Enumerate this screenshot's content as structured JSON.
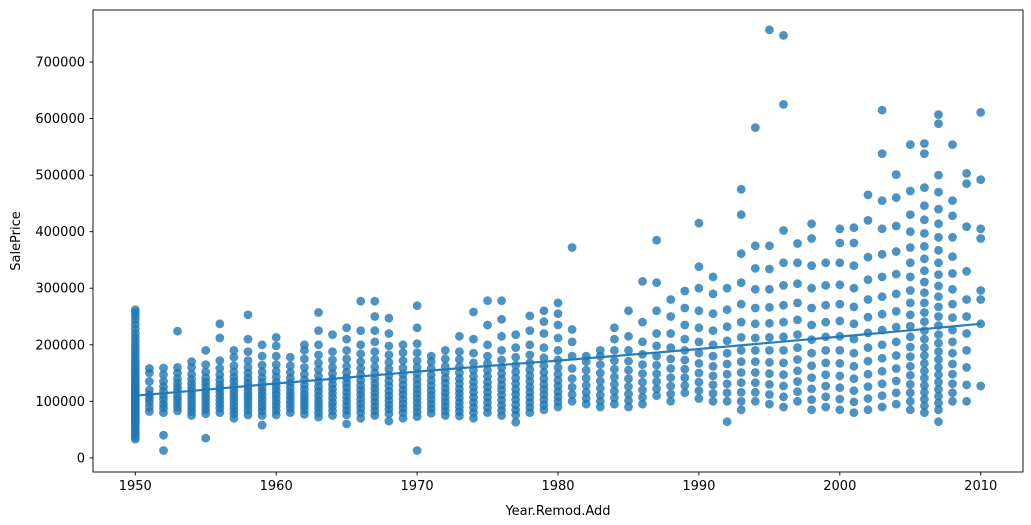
{
  "chart_data": {
    "type": "scatter",
    "title": "",
    "xlabel": "Year.Remod.Add",
    "ylabel": "SalePrice",
    "xlim": [
      1947,
      2013
    ],
    "ylim": [
      -25000,
      792000
    ],
    "xticks": [
      1950,
      1960,
      1970,
      1980,
      1990,
      2000,
      2010
    ],
    "yticks": [
      0,
      100000,
      200000,
      300000,
      400000,
      500000,
      600000,
      700000
    ],
    "grid": false,
    "legend": null,
    "point_color": "#1f77b4",
    "point_alpha": 0.8,
    "point_radius": 4.4,
    "trend_color": "#1f77b4",
    "trend_alpha": 0.95,
    "trend_width": 2.2,
    "price_unit": 1000,
    "columns_format": [
      "year",
      "prices_k"
    ],
    "columns": [
      [
        1950,
        [
          33,
          37,
          41,
          45,
          49,
          53,
          57,
          60,
          63,
          66,
          69,
          72,
          75,
          78,
          81,
          84,
          87,
          90,
          93,
          96,
          99,
          102,
          105,
          108,
          111,
          114,
          117,
          120,
          123,
          126,
          129,
          132,
          136,
          140,
          144,
          148,
          152,
          156,
          160,
          165,
          170,
          175,
          181,
          187,
          193,
          199,
          206,
          213,
          220,
          228,
          236,
          244,
          251,
          257,
          262
        ]
      ],
      [
        1951,
        [
          82,
          90,
          98,
          105,
          112,
          120,
          135,
          150,
          158
        ]
      ],
      [
        1952,
        [
          13,
          40,
          80,
          88,
          95,
          103,
          110,
          118,
          126,
          135,
          147,
          159
        ]
      ],
      [
        1953,
        [
          83,
          90,
          97,
          104,
          110,
          118,
          125,
          132,
          140,
          150,
          160,
          224
        ]
      ],
      [
        1954,
        [
          75,
          82,
          89,
          96,
          103,
          110,
          117,
          124,
          131,
          139,
          148,
          160,
          170
        ]
      ],
      [
        1955,
        [
          35,
          78,
          85,
          92,
          99,
          106,
          113,
          120,
          127,
          134,
          142,
          152,
          165,
          190
        ]
      ],
      [
        1956,
        [
          80,
          88,
          95,
          102,
          109,
          116,
          123,
          130,
          138,
          147,
          158,
          172,
          212,
          237
        ]
      ],
      [
        1957,
        [
          70,
          78,
          85,
          92,
          99,
          106,
          113,
          120,
          127,
          135,
          143,
          152,
          163,
          178,
          190
        ]
      ],
      [
        1958,
        [
          76,
          84,
          91,
          98,
          105,
          112,
          119,
          126,
          133,
          141,
          150,
          160,
          172,
          188,
          210,
          253
        ]
      ],
      [
        1959,
        [
          58,
          75,
          83,
          90,
          97,
          104,
          111,
          118,
          125,
          133,
          142,
          152,
          164,
          180,
          200
        ]
      ],
      [
        1960,
        [
          76,
          84,
          91,
          98,
          105,
          112,
          119,
          126,
          134,
          143,
          153,
          165,
          180,
          198,
          213
        ]
      ],
      [
        1961,
        [
          80,
          88,
          95,
          102,
          109,
          116,
          124,
          132,
          141,
          151,
          163,
          178
        ]
      ],
      [
        1962,
        [
          77,
          85,
          92,
          99,
          106,
          113,
          121,
          129,
          138,
          148,
          160,
          175,
          190,
          200
        ]
      ],
      [
        1963,
        [
          72,
          80,
          88,
          95,
          102,
          110,
          118,
          126,
          135,
          145,
          156,
          168,
          182,
          200,
          225,
          257
        ]
      ],
      [
        1964,
        [
          75,
          83,
          91,
          98,
          106,
          114,
          122,
          130,
          139,
          149,
          160,
          173,
          188,
          218
        ]
      ],
      [
        1965,
        [
          60,
          76,
          84,
          92,
          100,
          108,
          116,
          124,
          132,
          141,
          151,
          162,
          175,
          190,
          210,
          230
        ]
      ],
      [
        1966,
        [
          70,
          80,
          88,
          96,
          104,
          112,
          120,
          128,
          137,
          147,
          158,
          170,
          184,
          200,
          225,
          277
        ]
      ],
      [
        1967,
        [
          75,
          83,
          91,
          99,
          107,
          115,
          123,
          131,
          140,
          150,
          161,
          174,
          188,
          205,
          225,
          250,
          277
        ]
      ],
      [
        1968,
        [
          65,
          78,
          86,
          94,
          102,
          110,
          118,
          127,
          136,
          146,
          157,
          169,
          182,
          198,
          220,
          247
        ]
      ],
      [
        1969,
        [
          70,
          80,
          88,
          96,
          104,
          112,
          120,
          129,
          138,
          148,
          159,
          172,
          186,
          200
        ]
      ],
      [
        1970,
        [
          13,
          73,
          81,
          89,
          97,
          105,
          113,
          121,
          130,
          139,
          149,
          160,
          172,
          186,
          202,
          230,
          269
        ]
      ],
      [
        1971,
        [
          79,
          87,
          95,
          103,
          111,
          119,
          128,
          137,
          147,
          158,
          170,
          180
        ]
      ],
      [
        1972,
        [
          75,
          83,
          91,
          99,
          107,
          115,
          123,
          132,
          141,
          151,
          162,
          175,
          190
        ]
      ],
      [
        1973,
        [
          74,
          82,
          90,
          98,
          106,
          114,
          122,
          131,
          140,
          150,
          161,
          174,
          188,
          215
        ]
      ],
      [
        1974,
        [
          70,
          80,
          89,
          98,
          107,
          116,
          125,
          134,
          144,
          155,
          168,
          185,
          210,
          258
        ]
      ],
      [
        1975,
        [
          80,
          89,
          98,
          107,
          116,
          125,
          134,
          144,
          155,
          167,
          180,
          200,
          235,
          278
        ]
      ],
      [
        1976,
        [
          75,
          84,
          93,
          102,
          111,
          120,
          129,
          139,
          149,
          160,
          173,
          190,
          215,
          245,
          278
        ]
      ],
      [
        1977,
        [
          63,
          76,
          85,
          94,
          103,
          112,
          121,
          131,
          141,
          152,
          164,
          178,
          195,
          218
        ]
      ],
      [
        1978,
        [
          80,
          89,
          98,
          107,
          116,
          125,
          135,
          145,
          156,
          168,
          182,
          200,
          225,
          251
        ]
      ],
      [
        1979,
        [
          85,
          94,
          103,
          112,
          121,
          130,
          140,
          151,
          163,
          177,
          195,
          220,
          241,
          260
        ]
      ],
      [
        1980,
        [
          90,
          99,
          108,
          117,
          127,
          137,
          148,
          160,
          173,
          190,
          212,
          235,
          255,
          274
        ]
      ],
      [
        1981,
        [
          100,
          112,
          125,
          140,
          158,
          180,
          205,
          227,
          372
        ]
      ],
      [
        1982,
        [
          95,
          105,
          116,
          128,
          141,
          155,
          170,
          180
        ]
      ],
      [
        1983,
        [
          90,
          100,
          111,
          123,
          136,
          150,
          165,
          180,
          190
        ]
      ],
      [
        1984,
        [
          95,
          106,
          118,
          130,
          143,
          157,
          172,
          190,
          210,
          230
        ]
      ],
      [
        1985,
        [
          90,
          101,
          113,
          126,
          140,
          155,
          171,
          190,
          215,
          260
        ]
      ],
      [
        1986,
        [
          95,
          107,
          120,
          134,
          149,
          165,
          183,
          205,
          240,
          312
        ]
      ],
      [
        1987,
        [
          110,
          122,
          135,
          149,
          164,
          180,
          198,
          220,
          260,
          310,
          385
        ]
      ],
      [
        1988,
        [
          100,
          113,
          127,
          142,
          158,
          175,
          195,
          220,
          250,
          280
        ]
      ],
      [
        1989,
        [
          115,
          128,
          142,
          157,
          173,
          190,
          210,
          235,
          265,
          295
        ]
      ],
      [
        1990,
        [
          105,
          119,
          134,
          150,
          167,
          185,
          205,
          230,
          260,
          300,
          338,
          415
        ]
      ],
      [
        1991,
        [
          100,
          114,
          129,
          145,
          162,
          180,
          200,
          225,
          255,
          290,
          320
        ]
      ],
      [
        1992,
        [
          64,
          100,
          115,
          131,
          148,
          166,
          185,
          207,
          232,
          262,
          300
        ]
      ],
      [
        1993,
        [
          85,
          100,
          116,
          133,
          151,
          170,
          190,
          213,
          240,
          272,
          310,
          361,
          430,
          475
        ]
      ],
      [
        1994,
        [
          100,
          116,
          133,
          151,
          170,
          190,
          212,
          237,
          265,
          298,
          335,
          375,
          584
        ]
      ],
      [
        1995,
        [
          95,
          112,
          130,
          149,
          169,
          190,
          213,
          238,
          266,
          298,
          334,
          375,
          757
        ]
      ],
      [
        1996,
        [
          90,
          108,
          127,
          147,
          168,
          190,
          214,
          240,
          270,
          305,
          345,
          402,
          625,
          747
        ]
      ],
      [
        1997,
        [
          100,
          117,
          135,
          154,
          174,
          195,
          218,
          244,
          274,
          308,
          345,
          379
        ]
      ],
      [
        1998,
        [
          85,
          103,
          122,
          142,
          163,
          185,
          209,
          235,
          265,
          300,
          340,
          388,
          414
        ]
      ],
      [
        1999,
        [
          90,
          108,
          127,
          147,
          168,
          190,
          214,
          240,
          270,
          305,
          345
        ]
      ],
      [
        2000,
        [
          85,
          104,
          124,
          145,
          167,
          190,
          215,
          242,
          272,
          306,
          345,
          380,
          405
        ]
      ],
      [
        2001,
        [
          80,
          99,
          119,
          140,
          162,
          185,
          210,
          237,
          267,
          300,
          340,
          380,
          407
        ]
      ],
      [
        2002,
        [
          85,
          105,
          126,
          148,
          171,
          195,
          221,
          249,
          280,
          315,
          355,
          420,
          465
        ]
      ],
      [
        2003,
        [
          90,
          110,
          131,
          153,
          176,
          200,
          226,
          254,
          285,
          320,
          360,
          405,
          455,
          538,
          615
        ]
      ],
      [
        2004,
        [
          95,
          115,
          136,
          158,
          181,
          205,
          231,
          259,
          290,
          325,
          365,
          410,
          460,
          501
        ]
      ],
      [
        2005,
        [
          85,
          100,
          115,
          130,
          146,
          162,
          179,
          196,
          214,
          233,
          253,
          274,
          296,
          320,
          345,
          372,
          400,
          430,
          472,
          554
        ]
      ],
      [
        2006,
        [
          80,
          92,
          104,
          116,
          128,
          141,
          154,
          167,
          181,
          195,
          210,
          225,
          241,
          257,
          274,
          292,
          311,
          331,
          352,
          374,
          397,
          421,
          446,
          478,
          538,
          556
        ]
      ],
      [
        2007,
        [
          64,
          85,
          97,
          109,
          121,
          134,
          147,
          160,
          174,
          188,
          203,
          218,
          234,
          250,
          267,
          285,
          304,
          324,
          345,
          367,
          390,
          414,
          440,
          470,
          500,
          591,
          607
        ]
      ],
      [
        2008,
        [
          100,
          115,
          131,
          148,
          166,
          185,
          205,
          226,
          248,
          272,
          298,
          326,
          356,
          390,
          428,
          455,
          554
        ]
      ],
      [
        2009,
        [
          100,
          129,
          160,
          190,
          220,
          250,
          280,
          330,
          409,
          485,
          503
        ]
      ],
      [
        2010,
        [
          127,
          237,
          280,
          296,
          388,
          405,
          492,
          611
        ]
      ]
    ],
    "trend_format": [
      "year",
      "price_k"
    ],
    "trend_k": [
      [
        1950,
        110
      ],
      [
        1955,
        120.5
      ],
      [
        1960,
        131.5
      ],
      [
        1965,
        142
      ],
      [
        1970,
        152.5
      ],
      [
        1975,
        162.5
      ],
      [
        1980,
        172
      ],
      [
        1985,
        182
      ],
      [
        1990,
        192.5
      ],
      [
        1995,
        203.5
      ],
      [
        2000,
        214.5
      ],
      [
        2005,
        225.5
      ],
      [
        2010,
        237
      ]
    ]
  }
}
